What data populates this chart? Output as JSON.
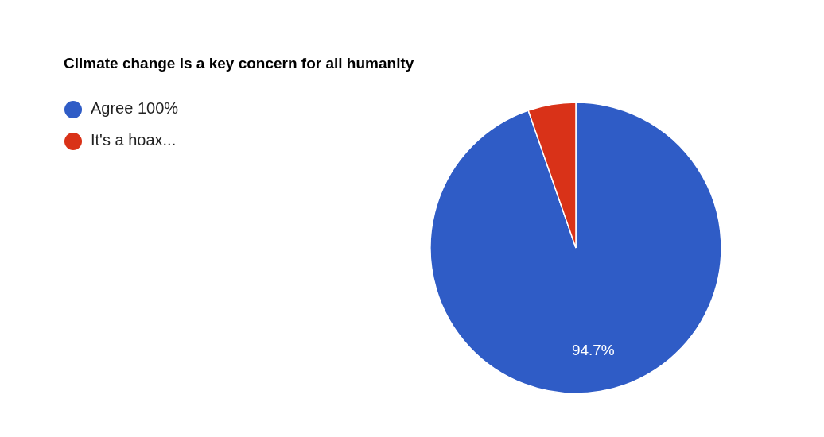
{
  "chart_data": {
    "type": "pie",
    "title": "Climate change is a key concern for all humanity",
    "categories": [
      "Agree 100%",
      "It's a hoax..."
    ],
    "values": [
      94.7,
      5.3
    ],
    "colors": [
      "#2f5cc6",
      "#d93218"
    ],
    "value_labels": [
      "94.7%",
      null
    ],
    "legend": "top left"
  }
}
